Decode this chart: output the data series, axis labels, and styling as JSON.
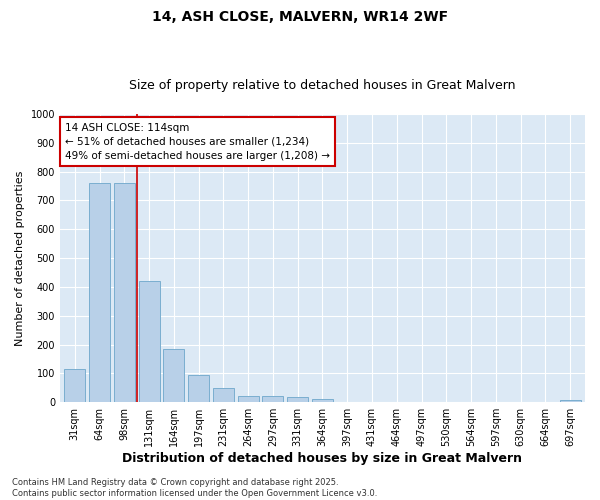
{
  "title": "14, ASH CLOSE, MALVERN, WR14 2WF",
  "subtitle": "Size of property relative to detached houses in Great Malvern",
  "xlabel": "Distribution of detached houses by size in Great Malvern",
  "ylabel": "Number of detached properties",
  "categories": [
    "31sqm",
    "64sqm",
    "98sqm",
    "131sqm",
    "164sqm",
    "197sqm",
    "231sqm",
    "264sqm",
    "297sqm",
    "331sqm",
    "364sqm",
    "397sqm",
    "431sqm",
    "464sqm",
    "497sqm",
    "530sqm",
    "564sqm",
    "597sqm",
    "630sqm",
    "664sqm",
    "697sqm"
  ],
  "values": [
    115,
    760,
    760,
    420,
    185,
    95,
    48,
    22,
    22,
    18,
    12,
    0,
    0,
    0,
    0,
    0,
    0,
    0,
    0,
    0,
    8
  ],
  "bar_color": "#b8d0e8",
  "bar_edge_color": "#7aaed0",
  "vline_x_index": 2,
  "vline_color": "#cc0000",
  "annotation_text": "14 ASH CLOSE: 114sqm\n← 51% of detached houses are smaller (1,234)\n49% of semi-detached houses are larger (1,208) →",
  "annotation_box_color": "#ffffff",
  "annotation_box_edge": "#cc0000",
  "ylim": [
    0,
    1000
  ],
  "yticks": [
    0,
    100,
    200,
    300,
    400,
    500,
    600,
    700,
    800,
    900,
    1000
  ],
  "footnote": "Contains HM Land Registry data © Crown copyright and database right 2025.\nContains public sector information licensed under the Open Government Licence v3.0.",
  "fig_bg_color": "#ffffff",
  "plot_bg_color": "#dce9f5",
  "grid_color": "#ffffff",
  "title_fontsize": 10,
  "subtitle_fontsize": 9,
  "xlabel_fontsize": 9,
  "ylabel_fontsize": 8,
  "tick_fontsize": 7,
  "annot_fontsize": 7.5,
  "footnote_fontsize": 6
}
